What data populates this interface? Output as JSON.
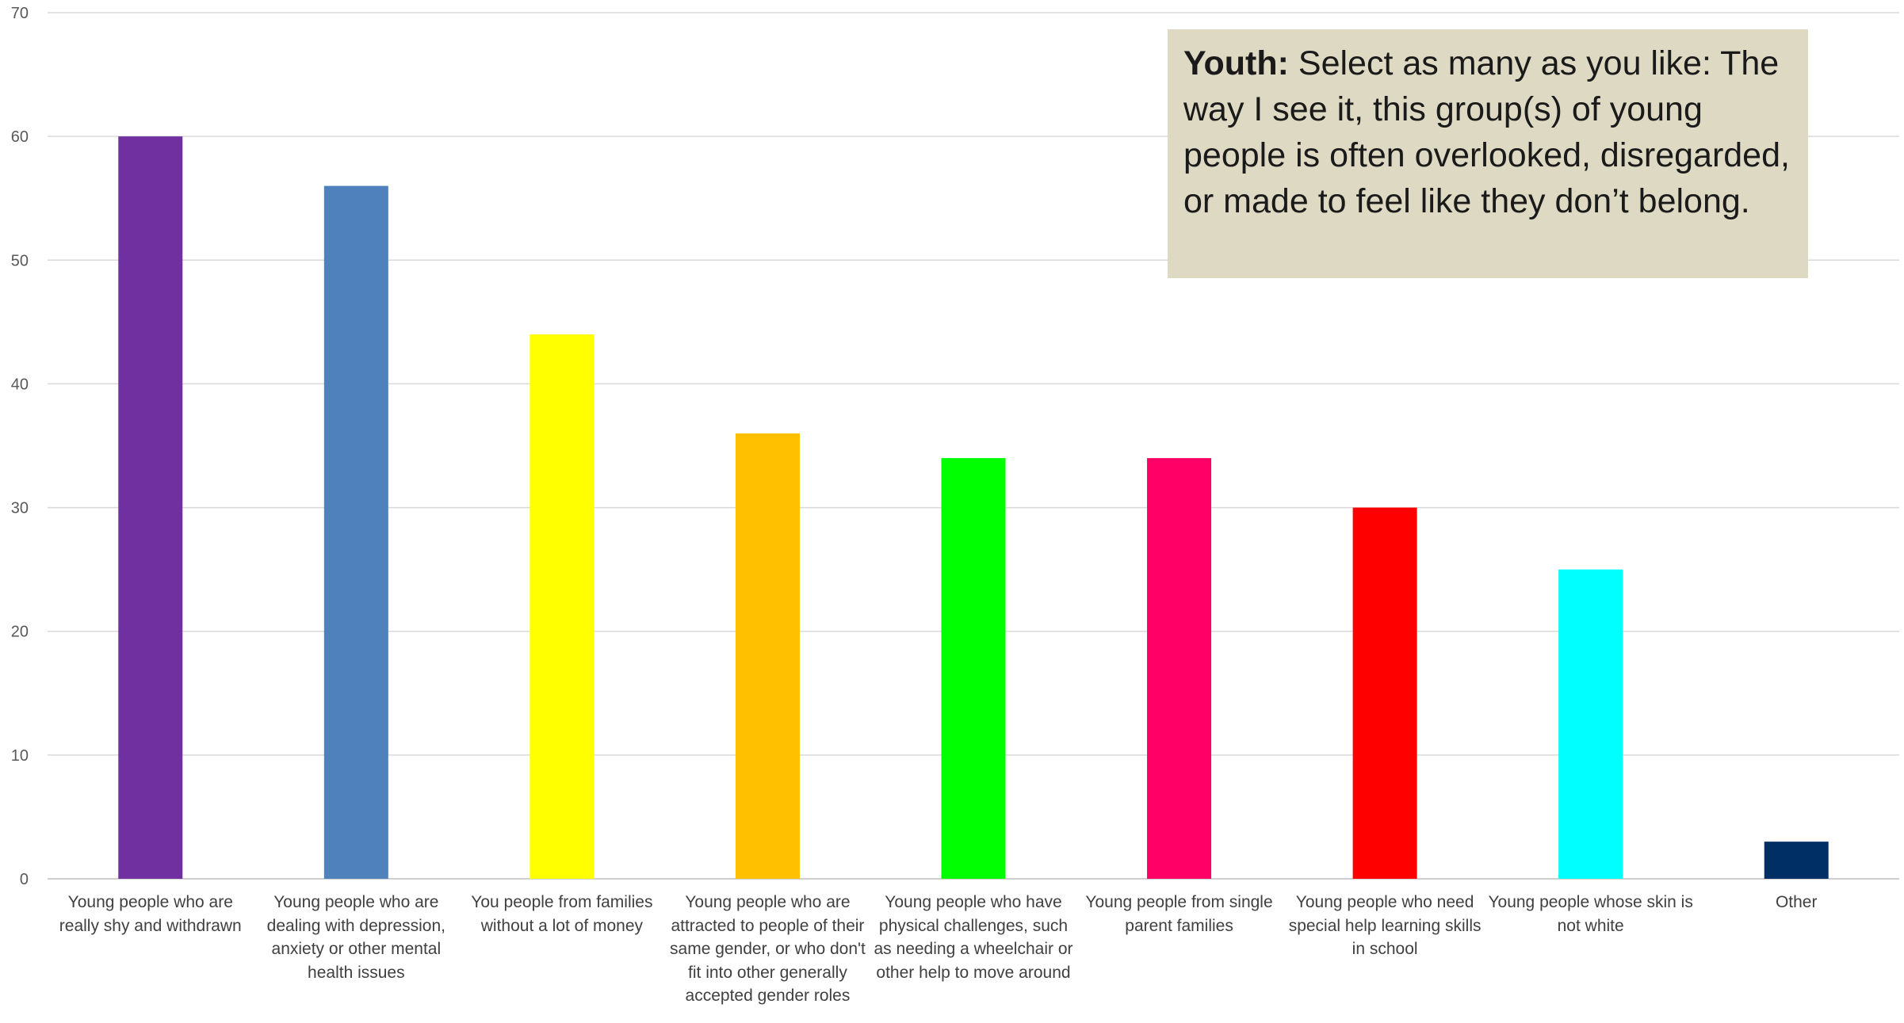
{
  "chart_data": {
    "type": "bar",
    "ylim": [
      0,
      70
    ],
    "yticks": [
      0,
      10,
      20,
      30,
      40,
      50,
      60,
      70
    ],
    "grid": true,
    "categories": [
      "Young people who are really shy and withdrawn",
      "Young people who are dealing with depression, anxiety or other mental health issues",
      "You people from families without a lot of money",
      "Young people who are attracted to people of their same gender, or who don't fit into other generally accepted gender roles",
      "Young people who have physical challenges, such as needing a wheelchair or other help to move around",
      "Young people from single parent families",
      "Young people who need special help learning skills in school",
      "Young people whose skin is not white",
      "Other"
    ],
    "values": [
      60,
      56,
      44,
      36,
      34,
      34,
      30,
      25,
      3
    ],
    "colors": [
      "#7030a0",
      "#4f81bd",
      "#ffff00",
      "#ffc000",
      "#00ff00",
      "#ff0066",
      "#ff0000",
      "#00ffff",
      "#002f66"
    ]
  },
  "annotation": {
    "bold": "Youth:",
    "text": " Select as many as you like: The way I see it, this group(s) of young people is often overlooked, disregarded, or made to feel like they don’t belong."
  }
}
